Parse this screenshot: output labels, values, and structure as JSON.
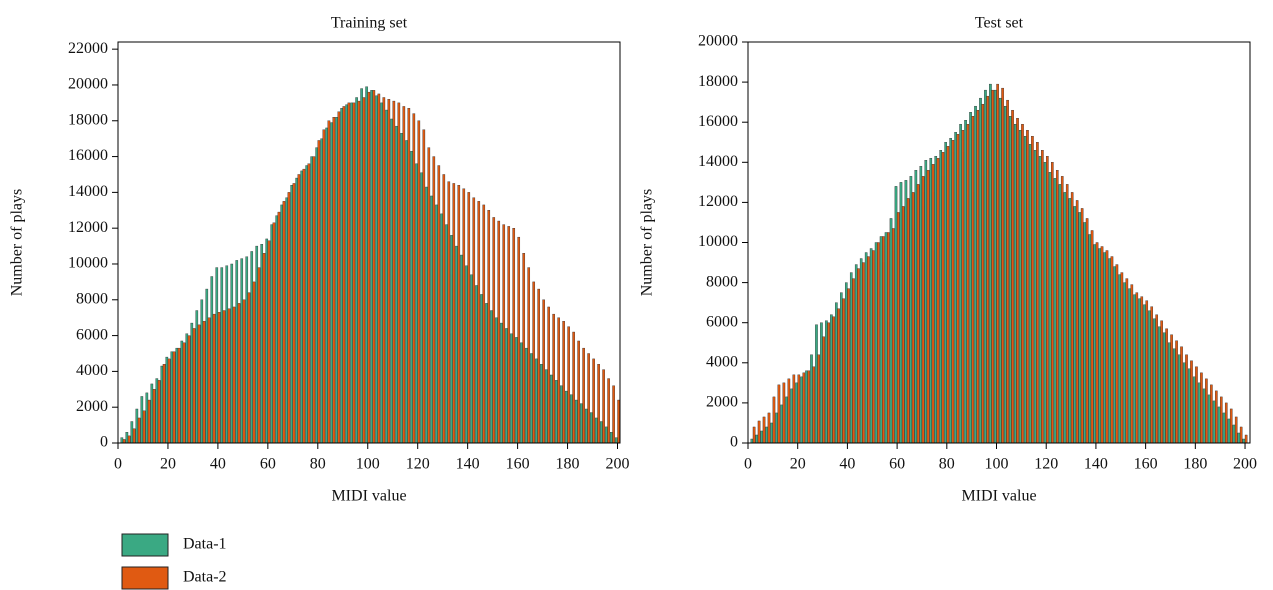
{
  "legend": [
    {
      "name": "Data-1",
      "color": "#3aa983"
    },
    {
      "name": "Data-2",
      "color": "#e05a12"
    }
  ],
  "chart_data": [
    {
      "type": "bar",
      "title": "Training set",
      "x_label": "MIDI value",
      "y_label": "Number of plays",
      "xlim": [
        0,
        201
      ],
      "xticks": [
        0,
        20,
        40,
        60,
        80,
        100,
        120,
        140,
        160,
        180,
        200
      ],
      "ylim": [
        0,
        22400
      ],
      "yticks": [
        0,
        2000,
        4000,
        6000,
        8000,
        10000,
        12000,
        14000,
        16000,
        18000,
        20000,
        22000
      ],
      "x": [
        2,
        4,
        6,
        8,
        10,
        12,
        14,
        16,
        18,
        20,
        22,
        24,
        26,
        28,
        30,
        32,
        34,
        36,
        38,
        40,
        42,
        44,
        46,
        48,
        50,
        52,
        54,
        56,
        58,
        60,
        62,
        64,
        66,
        68,
        70,
        72,
        74,
        76,
        78,
        80,
        82,
        84,
        86,
        88,
        90,
        92,
        94,
        96,
        98,
        100,
        102,
        104,
        106,
        108,
        110,
        112,
        114,
        116,
        118,
        120,
        122,
        124,
        126,
        128,
        130,
        132,
        134,
        136,
        138,
        140,
        142,
        144,
        146,
        148,
        150,
        152,
        154,
        156,
        158,
        160,
        162,
        164,
        166,
        168,
        170,
        172,
        174,
        176,
        178,
        180,
        182,
        184,
        186,
        188,
        190,
        192,
        194,
        196,
        198,
        200
      ],
      "series": [
        {
          "color": "#3aa983",
          "values": [
            300,
            600,
            1200,
            1900,
            2600,
            2800,
            3300,
            3600,
            4300,
            4800,
            5100,
            5300,
            5700,
            6100,
            6700,
            7400,
            8000,
            8600,
            9300,
            9800,
            9800,
            9900,
            10000,
            10200,
            10300,
            10400,
            10700,
            11000,
            11100,
            11400,
            12200,
            12700,
            13300,
            13700,
            14400,
            14800,
            15200,
            15500,
            16000,
            16500,
            17000,
            17600,
            17900,
            18200,
            18700,
            18900,
            19000,
            19300,
            19800,
            19900,
            19700,
            19400,
            19000,
            18600,
            18100,
            17700,
            17300,
            16900,
            16300,
            15600,
            15100,
            14300,
            13800,
            13300,
            12800,
            12200,
            11600,
            11000,
            10500,
            9900,
            9400,
            8800,
            8300,
            7800,
            7400,
            7000,
            6700,
            6400,
            6100,
            5900,
            5600,
            5300,
            5000,
            4700,
            4400,
            4100,
            3800,
            3500,
            3200,
            2900,
            2700,
            2400,
            2200,
            1900,
            1700,
            1400,
            1200,
            900,
            600,
            300
          ]
        },
        {
          "color": "#e05a12",
          "values": [
            200,
            400,
            800,
            1400,
            1800,
            2400,
            3000,
            3500,
            4400,
            4700,
            5100,
            5300,
            5600,
            6000,
            6400,
            6600,
            6800,
            7000,
            7200,
            7300,
            7400,
            7500,
            7600,
            7800,
            8000,
            8400,
            9000,
            9800,
            10600,
            11300,
            12300,
            12900,
            13500,
            14000,
            14500,
            15000,
            15300,
            15600,
            16000,
            16900,
            17500,
            18000,
            18200,
            18500,
            18800,
            19000,
            19000,
            19100,
            19300,
            19600,
            19700,
            19500,
            19300,
            19200,
            19100,
            19000,
            18800,
            18700,
            18400,
            18000,
            17500,
            16500,
            16000,
            15500,
            15000,
            14600,
            14500,
            14400,
            14200,
            14000,
            13700,
            13500,
            13300,
            13000,
            12600,
            12400,
            12200,
            12100,
            12000,
            11500,
            10600,
            9800,
            9000,
            8600,
            8000,
            7600,
            7200,
            7000,
            6800,
            6500,
            6200,
            5700,
            5300,
            5000,
            4700,
            4400,
            4100,
            3600,
            3200,
            2400
          ]
        }
      ]
    },
    {
      "type": "bar",
      "title": "Test set",
      "x_label": "MIDI value",
      "y_label": "Number of plays",
      "xlim": [
        0,
        202
      ],
      "xticks": [
        0,
        20,
        40,
        60,
        80,
        100,
        120,
        140,
        160,
        180,
        200
      ],
      "ylim": [
        0,
        20000
      ],
      "yticks": [
        0,
        2000,
        4000,
        6000,
        8000,
        10000,
        12000,
        14000,
        16000,
        18000,
        20000
      ],
      "x": [
        2,
        4,
        6,
        8,
        10,
        12,
        14,
        16,
        18,
        20,
        22,
        24,
        26,
        28,
        30,
        32,
        34,
        36,
        38,
        40,
        42,
        44,
        46,
        48,
        50,
        52,
        54,
        56,
        58,
        60,
        62,
        64,
        66,
        68,
        70,
        72,
        74,
        76,
        78,
        80,
        82,
        84,
        86,
        88,
        90,
        92,
        94,
        96,
        98,
        100,
        102,
        104,
        106,
        108,
        110,
        112,
        114,
        116,
        118,
        120,
        122,
        124,
        126,
        128,
        130,
        132,
        134,
        136,
        138,
        140,
        142,
        144,
        146,
        148,
        150,
        152,
        154,
        156,
        158,
        160,
        162,
        164,
        166,
        168,
        170,
        172,
        174,
        176,
        178,
        180,
        182,
        184,
        186,
        188,
        190,
        192,
        194,
        196,
        198,
        200
      ],
      "series": [
        {
          "color": "#3aa983",
          "values": [
            200,
            400,
            600,
            800,
            1000,
            1500,
            1900,
            2300,
            2700,
            3000,
            3300,
            3600,
            4400,
            5900,
            6000,
            6100,
            6400,
            7000,
            7500,
            8000,
            8500,
            8900,
            9200,
            9500,
            9700,
            10000,
            10300,
            10500,
            11200,
            12800,
            13000,
            13100,
            13300,
            13600,
            13800,
            14100,
            14200,
            14300,
            14600,
            15000,
            15200,
            15500,
            15900,
            16100,
            16500,
            16800,
            17200,
            17600,
            17900,
            17600,
            17200,
            16800,
            16300,
            15900,
            15600,
            15300,
            14900,
            14600,
            14300,
            14000,
            13500,
            13200,
            12900,
            12500,
            12200,
            11800,
            11500,
            11000,
            10400,
            9900,
            9700,
            9500,
            9200,
            8800,
            8400,
            8000,
            7700,
            7400,
            7200,
            6900,
            6600,
            6200,
            5800,
            5500,
            5000,
            4700,
            4400,
            4000,
            3700,
            3300,
            3000,
            2700,
            2400,
            2100,
            1800,
            1500,
            1200,
            900,
            500,
            200
          ]
        },
        {
          "color": "#e05a12",
          "values": [
            800,
            1100,
            1300,
            1500,
            2300,
            2900,
            3000,
            3200,
            3400,
            3400,
            3500,
            3600,
            3800,
            4400,
            5300,
            6000,
            6300,
            6700,
            7200,
            7700,
            8200,
            8700,
            9000,
            9300,
            9600,
            10000,
            10300,
            10500,
            10700,
            11500,
            11800,
            12200,
            12500,
            12900,
            13300,
            13600,
            13900,
            14200,
            14500,
            14800,
            15100,
            15400,
            15600,
            15900,
            16300,
            16600,
            16900,
            17300,
            17600,
            17900,
            17700,
            17100,
            16600,
            16200,
            15900,
            15600,
            15300,
            15000,
            14600,
            14300,
            14000,
            13600,
            13300,
            12900,
            12500,
            12100,
            11700,
            11200,
            10600,
            10000,
            9800,
            9600,
            9300,
            8900,
            8500,
            8200,
            7900,
            7500,
            7300,
            7100,
            6800,
            6400,
            6100,
            5700,
            5400,
            5100,
            4800,
            4400,
            4100,
            3800,
            3500,
            3200,
            2900,
            2600,
            2300,
            2000,
            1700,
            1300,
            800,
            400
          ]
        }
      ]
    }
  ]
}
